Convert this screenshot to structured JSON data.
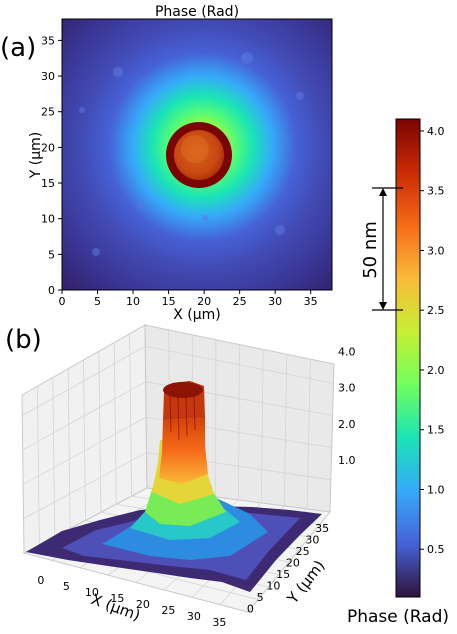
{
  "panel_labels": {
    "a": "(a)",
    "b": "(b)"
  },
  "colormap": {
    "name": "turbo",
    "stops": [
      "#30123b",
      "#4662d7",
      "#36aaf9",
      "#1ae4b6",
      "#72fe5e",
      "#c7ef34",
      "#faba39",
      "#f66b19",
      "#ca2a04",
      "#7a0403"
    ]
  },
  "chart_data": [
    {
      "type": "heatmap",
      "title": "Phase (Rad)",
      "xlabel": "X (μm)",
      "ylabel": "Y (μm)",
      "xlim": [
        0,
        38
      ],
      "ylim": [
        0,
        38
      ],
      "xticks": [
        0,
        5,
        10,
        15,
        20,
        25,
        30,
        35
      ],
      "yticks": [
        0,
        5,
        10,
        15,
        20,
        25,
        30,
        35
      ],
      "feature": {
        "center_um": [
          19.5,
          19.5
        ],
        "plateau_radius_um": 4.5,
        "halo_radius_um": 11,
        "peak_phase_rad": 4.0,
        "background_phase_rad": 0.3
      },
      "annotations": [
        {
          "text": "50 nm",
          "from_phase": 2.5,
          "to_phase": 3.5
        }
      ]
    },
    {
      "type": "surface",
      "xlabel": "X (μm)",
      "ylabel": "Y (μm)",
      "xticks": [
        0,
        5,
        10,
        15,
        20,
        25,
        30,
        35
      ],
      "yticks": [
        0,
        5,
        10,
        15,
        20,
        25,
        30,
        35
      ],
      "zticks": [
        "1.0",
        "2.0",
        "3.0",
        "4.0"
      ],
      "zlim": [
        0,
        4.1
      ]
    },
    {
      "type": "colorbar",
      "label": "Phase (Rad)",
      "range": [
        0.1,
        4.1
      ],
      "ticks": [
        "0.5",
        "1.0",
        "1.5",
        "2.0",
        "2.5",
        "3.0",
        "3.5",
        "4.0"
      ]
    }
  ]
}
